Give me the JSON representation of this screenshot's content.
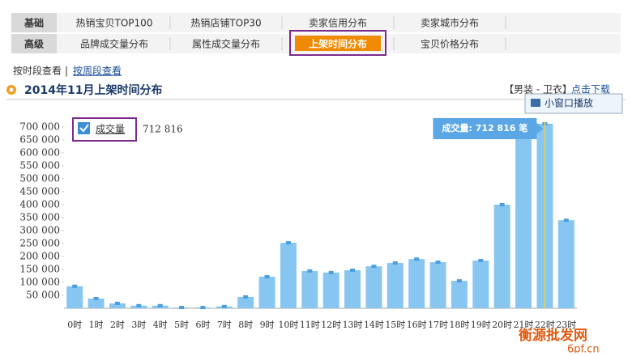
{
  "nav": {
    "rows": [
      {
        "label": "基础",
        "tabs": [
          "热销宝贝TOP100",
          "热销店铺TOP30",
          "卖家信用分布",
          "卖家城市分布"
        ]
      },
      {
        "label": "高级",
        "tabs": [
          "品牌成交量分布",
          "属性成交量分布",
          "上架时间分布",
          "宝贝价格分布"
        ]
      }
    ]
  },
  "view_links": [
    "按时段查看",
    "按周段查看"
  ],
  "header": {
    "title": "2014年11月上架时间分布",
    "category": "【男装 - 卫衣】",
    "download": "点击下载"
  },
  "popup": "小窗口播放",
  "watermark": {
    "name": "衡源批发网",
    "url": "6pf.cn"
  },
  "chart_data": {
    "type": "bar",
    "categories": [
      "0时",
      "1时",
      "2时",
      "3时",
      "4时",
      "5时",
      "6时",
      "7时",
      "8时",
      "9时",
      "10时",
      "11时",
      "12时",
      "13时",
      "14时",
      "15时",
      "16时",
      "17时",
      "18时",
      "19时",
      "20时",
      "21时",
      "22时",
      "23时"
    ],
    "series": [
      {
        "name": "成交量",
        "color": "#88c6f2",
        "values": [
          85000,
          37500,
          19000,
          10000,
          10000,
          3000,
          3000,
          7000,
          44000,
          122000,
          253000,
          144000,
          138000,
          147000,
          162000,
          175000,
          190000,
          178000,
          106000,
          184000,
          400000,
          690000,
          712816,
          340000
        ]
      }
    ],
    "legend_total": "712 816",
    "tooltip": "成交量: 712 816 笔",
    "ylim": [
      0,
      720000
    ],
    "yticks": [
      {
        "value": 50000,
        "label": "50 000"
      },
      {
        "value": 100000,
        "label": "100 000"
      },
      {
        "value": 150000,
        "label": "150 000"
      },
      {
        "value": 200000,
        "label": "200 000"
      },
      {
        "value": 250000,
        "label": "250 000"
      },
      {
        "value": 300000,
        "label": "300 000"
      },
      {
        "value": 350000,
        "label": "350 000"
      },
      {
        "value": 400000,
        "label": "400 000"
      },
      {
        "value": 450000,
        "label": "450 000"
      },
      {
        "value": 500000,
        "label": "500 000"
      },
      {
        "value": 550000,
        "label": "550 000"
      },
      {
        "value": 600000,
        "label": "600 000"
      },
      {
        "value": 650000,
        "label": "650 000"
      },
      {
        "value": 700000,
        "label": "700 000"
      }
    ],
    "grid": false
  }
}
